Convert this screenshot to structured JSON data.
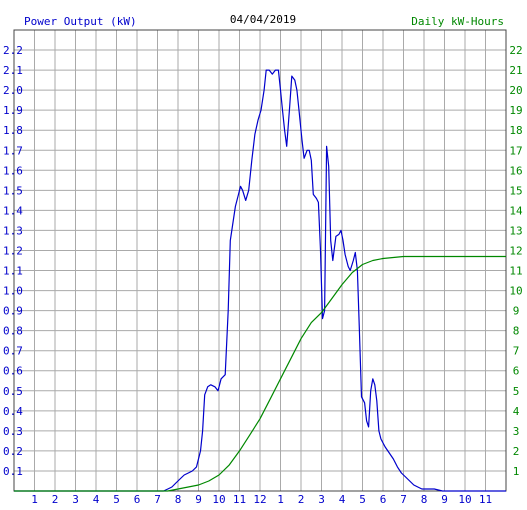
{
  "chart_data": {
    "type": "line",
    "title": "04/04/2019",
    "left_axis_title": "Power Output (kW)",
    "right_axis_title": "Daily kW-Hours",
    "x_tick_labels": [
      "1",
      "2",
      "3",
      "4",
      "5",
      "6",
      "7",
      "8",
      "9",
      "10",
      "11",
      "12",
      "1",
      "2",
      "3",
      "4",
      "5",
      "6",
      "7",
      "8",
      "9",
      "10",
      "11"
    ],
    "xlim": [
      0,
      24
    ],
    "y_left_ticks": [
      "0.1",
      "0.2",
      "0.3",
      "0.4",
      "0.5",
      "0.6",
      "0.7",
      "0.8",
      "0.9",
      "1.0",
      "1.1",
      "1.2",
      "1.3",
      "1.4",
      "1.5",
      "1.6",
      "1.7",
      "1.8",
      "1.9",
      "2.0",
      "2.1",
      "2.2"
    ],
    "ylim_left": [
      0,
      2.3
    ],
    "y_right_ticks": [
      "1",
      "2",
      "3",
      "4",
      "5",
      "6",
      "7",
      "8",
      "9",
      "10",
      "11",
      "12",
      "13",
      "14",
      "15",
      "16",
      "17",
      "18",
      "19",
      "20",
      "21",
      "22"
    ],
    "ylim_right": [
      0,
      23
    ],
    "grid": true,
    "series": [
      {
        "color": "#0000cc",
        "axis": "left",
        "points": [
          [
            0,
            0
          ],
          [
            7.3,
            0
          ],
          [
            7.5,
            0.01
          ],
          [
            7.7,
            0.02
          ],
          [
            7.9,
            0.04
          ],
          [
            8.1,
            0.06
          ],
          [
            8.3,
            0.08
          ],
          [
            8.5,
            0.09
          ],
          [
            8.7,
            0.1
          ],
          [
            8.9,
            0.12
          ],
          [
            9.0,
            0.16
          ],
          [
            9.1,
            0.2
          ],
          [
            9.2,
            0.3
          ],
          [
            9.3,
            0.48
          ],
          [
            9.45,
            0.52
          ],
          [
            9.6,
            0.53
          ],
          [
            9.8,
            0.52
          ],
          [
            9.95,
            0.5
          ],
          [
            10.1,
            0.56
          ],
          [
            10.3,
            0.58
          ],
          [
            10.45,
            0.9
          ],
          [
            10.55,
            1.25
          ],
          [
            10.7,
            1.35
          ],
          [
            10.8,
            1.42
          ],
          [
            10.95,
            1.48
          ],
          [
            11.05,
            1.52
          ],
          [
            11.15,
            1.5
          ],
          [
            11.3,
            1.45
          ],
          [
            11.45,
            1.5
          ],
          [
            11.6,
            1.65
          ],
          [
            11.75,
            1.78
          ],
          [
            11.9,
            1.85
          ],
          [
            12.05,
            1.9
          ],
          [
            12.2,
            2.0
          ],
          [
            12.3,
            2.1
          ],
          [
            12.45,
            2.1
          ],
          [
            12.6,
            2.08
          ],
          [
            12.75,
            2.1
          ],
          [
            12.9,
            2.1
          ],
          [
            13.0,
            2.0
          ],
          [
            13.1,
            1.9
          ],
          [
            13.2,
            1.8
          ],
          [
            13.3,
            1.72
          ],
          [
            13.45,
            1.92
          ],
          [
            13.55,
            2.07
          ],
          [
            13.7,
            2.05
          ],
          [
            13.8,
            2.0
          ],
          [
            13.9,
            1.9
          ],
          [
            14.05,
            1.75
          ],
          [
            14.15,
            1.66
          ],
          [
            14.3,
            1.7
          ],
          [
            14.4,
            1.7
          ],
          [
            14.5,
            1.65
          ],
          [
            14.6,
            1.48
          ],
          [
            14.75,
            1.46
          ],
          [
            14.85,
            1.44
          ],
          [
            14.95,
            1.2
          ],
          [
            15.05,
            0.86
          ],
          [
            15.15,
            0.9
          ],
          [
            15.25,
            1.72
          ],
          [
            15.35,
            1.62
          ],
          [
            15.45,
            1.25
          ],
          [
            15.55,
            1.15
          ],
          [
            15.7,
            1.27
          ],
          [
            15.85,
            1.28
          ],
          [
            15.95,
            1.3
          ],
          [
            16.05,
            1.25
          ],
          [
            16.15,
            1.18
          ],
          [
            16.3,
            1.12
          ],
          [
            16.4,
            1.1
          ],
          [
            16.55,
            1.15
          ],
          [
            16.65,
            1.19
          ],
          [
            16.75,
            1.1
          ],
          [
            16.85,
            0.8
          ],
          [
            16.95,
            0.47
          ],
          [
            17.1,
            0.44
          ],
          [
            17.2,
            0.35
          ],
          [
            17.3,
            0.32
          ],
          [
            17.4,
            0.5
          ],
          [
            17.5,
            0.56
          ],
          [
            17.6,
            0.53
          ],
          [
            17.7,
            0.45
          ],
          [
            17.8,
            0.3
          ],
          [
            17.9,
            0.26
          ],
          [
            18.1,
            0.22
          ],
          [
            18.3,
            0.19
          ],
          [
            18.5,
            0.16
          ],
          [
            18.7,
            0.12
          ],
          [
            18.9,
            0.09
          ],
          [
            19.1,
            0.07
          ],
          [
            19.3,
            0.05
          ],
          [
            19.5,
            0.03
          ],
          [
            19.7,
            0.02
          ],
          [
            19.9,
            0.01
          ],
          [
            20.5,
            0.01
          ],
          [
            20.9,
            0.0
          ],
          [
            24,
            0.0
          ]
        ]
      },
      {
        "color": "#008800",
        "axis": "right",
        "points": [
          [
            0,
            0
          ],
          [
            7.5,
            0
          ],
          [
            8.0,
            0.1
          ],
          [
            8.5,
            0.2
          ],
          [
            9.0,
            0.3
          ],
          [
            9.5,
            0.5
          ],
          [
            10.0,
            0.8
          ],
          [
            10.5,
            1.3
          ],
          [
            11.0,
            2.0
          ],
          [
            11.5,
            2.8
          ],
          [
            12.0,
            3.6
          ],
          [
            12.5,
            4.6
          ],
          [
            13.0,
            5.6
          ],
          [
            13.5,
            6.6
          ],
          [
            14.0,
            7.6
          ],
          [
            14.5,
            8.4
          ],
          [
            15.0,
            8.9
          ],
          [
            15.5,
            9.6
          ],
          [
            16.0,
            10.3
          ],
          [
            16.5,
            10.9
          ],
          [
            17.0,
            11.3
          ],
          [
            17.5,
            11.5
          ],
          [
            18.0,
            11.6
          ],
          [
            18.5,
            11.65
          ],
          [
            19.0,
            11.7
          ],
          [
            24,
            11.7
          ]
        ]
      }
    ]
  }
}
